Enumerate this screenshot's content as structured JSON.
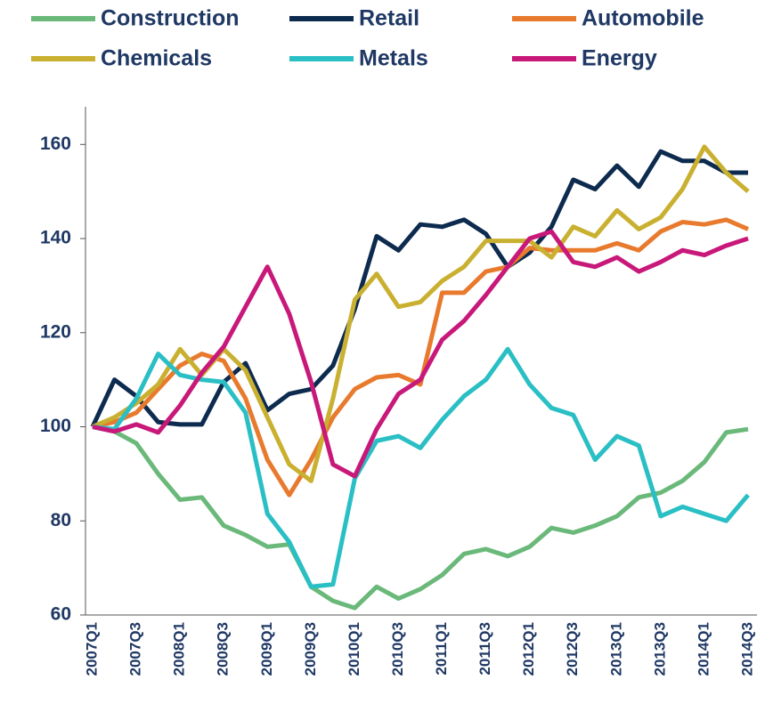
{
  "chart_data": {
    "type": "line",
    "categories": [
      "2007Q1",
      null,
      "2007Q3",
      null,
      "2008Q1",
      null,
      "2008Q3",
      null,
      "2009Q1",
      null,
      "2009Q3",
      null,
      "2010Q1",
      null,
      "2010Q3",
      null,
      "2011Q1",
      null,
      "2011Q3",
      null,
      "2012Q1",
      null,
      "2012Q3",
      null,
      "2013Q1",
      null,
      "2013Q3",
      null,
      "2014Q1",
      null,
      "2014Q3"
    ],
    "series": [
      {
        "name": "Construction",
        "color": "#6ab97a",
        "values": [
          100,
          99,
          96.5,
          90,
          84.5,
          85,
          79,
          77,
          74.5,
          75,
          66,
          63,
          61.5,
          66,
          63.5,
          65.5,
          68.5,
          73,
          74,
          72.5,
          74.5,
          78.5,
          77.5,
          79,
          81,
          85,
          86,
          88.5,
          92.5,
          98.8,
          99.5
        ]
      },
      {
        "name": "Retail",
        "color": "#0d2b4f",
        "values": [
          100,
          110,
          106.5,
          101,
          100.5,
          100.5,
          109.5,
          113.5,
          103.5,
          107,
          108,
          113,
          125,
          140.5,
          137.5,
          143,
          142.5,
          144,
          141,
          134,
          137,
          142.5,
          152.5,
          150.5,
          155.5,
          151,
          158.5,
          156.5,
          156.5,
          154,
          154
        ]
      },
      {
        "name": "Automobile",
        "color": "#e87a2e",
        "values": [
          100,
          101,
          103,
          108,
          113,
          115.5,
          114,
          106,
          93,
          85.5,
          93,
          102,
          108,
          110.5,
          111,
          109,
          128.5,
          128.5,
          133,
          134,
          138,
          137.5,
          137.5,
          137.5,
          139,
          137.5,
          141.5,
          143.5,
          143,
          144,
          142
        ]
      },
      {
        "name": "Chemicals",
        "color": "#c9b030",
        "values": [
          100,
          102,
          105,
          109,
          116.5,
          111,
          116.5,
          112,
          102,
          92,
          88.5,
          106,
          127,
          132.5,
          125.5,
          126.5,
          131,
          134,
          139.5,
          139.5,
          139.5,
          136,
          142.5,
          140.5,
          146,
          142,
          144.5,
          150.5,
          159.5,
          154,
          150
        ]
      },
      {
        "name": "Metals",
        "color": "#2abfc4",
        "values": [
          100,
          99.5,
          106,
          115.5,
          111,
          110,
          109.5,
          103,
          81.5,
          75.5,
          66,
          66.5,
          89,
          97,
          98,
          95.5,
          101.5,
          106.5,
          110,
          116.5,
          109,
          104,
          102.5,
          93,
          98,
          96,
          81,
          83,
          81.5,
          80,
          85.5
        ]
      },
      {
        "name": "Energy",
        "color": "#c8187a",
        "values": [
          100,
          99,
          100.5,
          98.8,
          104.5,
          111.5,
          117,
          125.5,
          134,
          124,
          109.5,
          92,
          89.5,
          99.5,
          107,
          110,
          118.5,
          122.5,
          128,
          134,
          140,
          141.5,
          135,
          134,
          136,
          133,
          135,
          137.5,
          136.5,
          138.5,
          140
        ]
      }
    ],
    "ylim": [
      60,
      168
    ],
    "yticks": [
      60,
      80,
      100,
      120,
      140,
      160
    ],
    "grid": false
  }
}
